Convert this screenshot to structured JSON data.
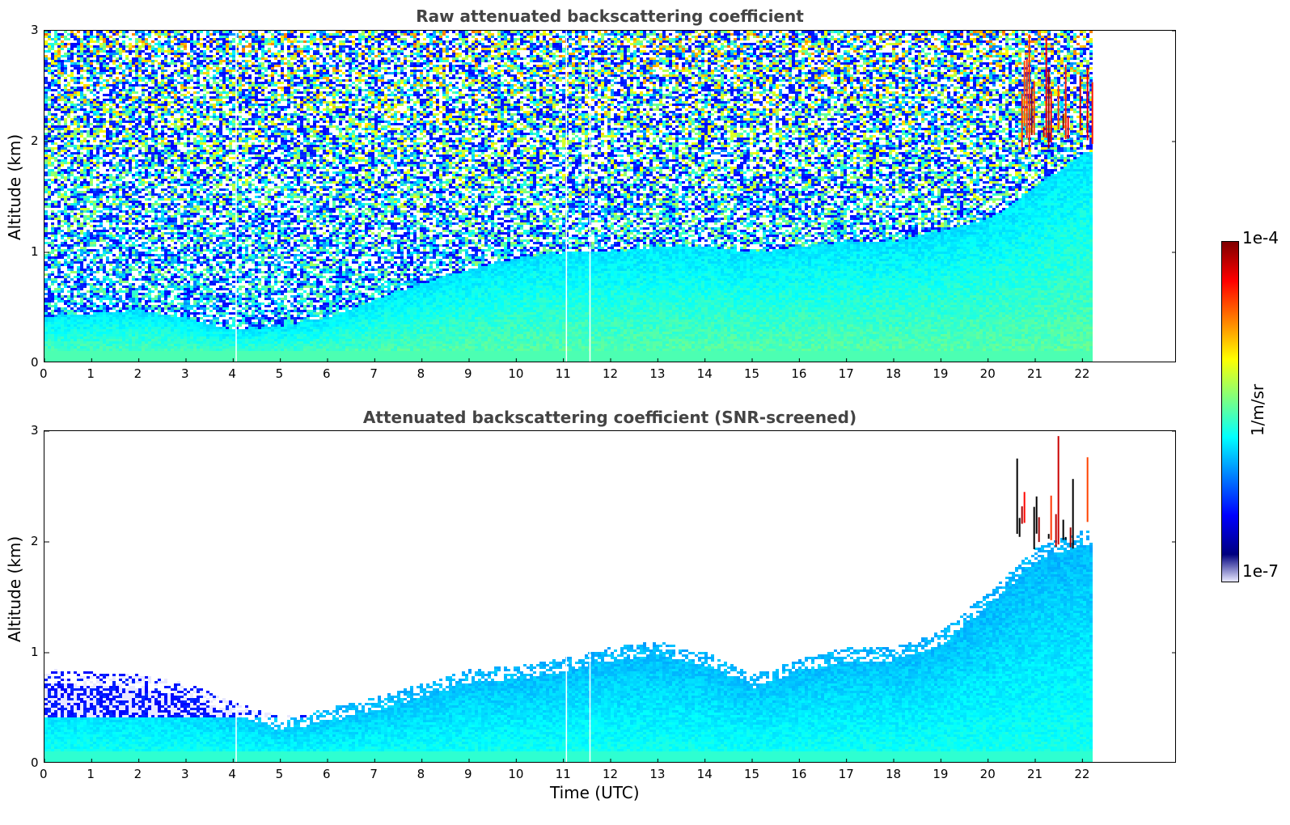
{
  "colors": {
    "jet": [
      "#00007f",
      "#0000ff",
      "#007fff",
      "#00ffff",
      "#7fff7f",
      "#ffff00",
      "#ff7f00",
      "#ff0000",
      "#7f0000"
    ],
    "low_fade": "#e8e8ff"
  },
  "chart_data": [
    {
      "type": "heatmap",
      "title": "Raw attenuated backscattering coefficient",
      "xlabel": "",
      "ylabel": "Altitude (km)",
      "xlim": [
        0,
        24
      ],
      "ylim": [
        0,
        3
      ],
      "xticks": [
        0,
        1,
        2,
        3,
        4,
        5,
        6,
        7,
        8,
        9,
        10,
        11,
        12,
        13,
        14,
        15,
        16,
        17,
        18,
        19,
        20,
        21,
        22
      ],
      "yticks": [
        0,
        1,
        2,
        3
      ],
      "x_unit": "Time (UTC) hours",
      "data_end_time": 22.2,
      "boundary_layer_top_km": [
        [
          0,
          0.42
        ],
        [
          1,
          0.45
        ],
        [
          2,
          0.48
        ],
        [
          3,
          0.4
        ],
        [
          4,
          0.3
        ],
        [
          5,
          0.33
        ],
        [
          6,
          0.42
        ],
        [
          7,
          0.58
        ],
        [
          8,
          0.72
        ],
        [
          9,
          0.85
        ],
        [
          10,
          0.95
        ],
        [
          11,
          1.0
        ],
        [
          12,
          1.0
        ],
        [
          13,
          1.05
        ],
        [
          14,
          1.05
        ],
        [
          15,
          1.0
        ],
        [
          16,
          1.05
        ],
        [
          17,
          1.1
        ],
        [
          18,
          1.1
        ],
        [
          19,
          1.2
        ],
        [
          20,
          1.3
        ],
        [
          21,
          1.6
        ],
        [
          22,
          1.9
        ]
      ],
      "cloud_features": [
        {
          "time_start": 20.6,
          "time_end": 22.2,
          "altitude_km": [
            1.9,
            3.0
          ]
        }
      ],
      "gaps_time": [
        4.05,
        11.05,
        11.55
      ]
    },
    {
      "type": "heatmap",
      "title": "Attenuated backscattering coefficient (SNR-screened)",
      "xlabel": "Time (UTC)",
      "ylabel": "Altitude (km)",
      "xlim": [
        0,
        24
      ],
      "ylim": [
        0,
        3
      ],
      "xticks": [
        0,
        1,
        2,
        3,
        4,
        5,
        6,
        7,
        8,
        9,
        10,
        11,
        12,
        13,
        14,
        15,
        16,
        17,
        18,
        19,
        20,
        21,
        22
      ],
      "yticks": [
        0,
        1,
        2,
        3
      ],
      "data_end_time": 22.2,
      "screened_top_km": [
        [
          0,
          0.85
        ],
        [
          1,
          0.82
        ],
        [
          2,
          0.8
        ],
        [
          3,
          0.72
        ],
        [
          4,
          0.55
        ],
        [
          5,
          0.42
        ],
        [
          6,
          0.5
        ],
        [
          7,
          0.6
        ],
        [
          8,
          0.72
        ],
        [
          9,
          0.85
        ],
        [
          10,
          0.88
        ],
        [
          11,
          0.95
        ],
        [
          12,
          1.05
        ],
        [
          13,
          1.1
        ],
        [
          14,
          1.0
        ],
        [
          15,
          0.8
        ],
        [
          16,
          0.95
        ],
        [
          17,
          1.05
        ],
        [
          18,
          1.05
        ],
        [
          19,
          1.2
        ],
        [
          20,
          1.55
        ],
        [
          21,
          1.95
        ],
        [
          22,
          2.1
        ]
      ],
      "cloud_features": [
        {
          "time_start": 20.6,
          "time_end": 22.2,
          "altitude_km": [
            1.9,
            3.0
          ]
        }
      ],
      "gaps_time": [
        4.05,
        11.05,
        11.55
      ]
    }
  ],
  "colorbar": {
    "label": "1/m/sr",
    "max_label": "1e-4",
    "min_label": "1e-7",
    "scale": "log",
    "range": [
      1e-07,
      0.0001
    ]
  }
}
